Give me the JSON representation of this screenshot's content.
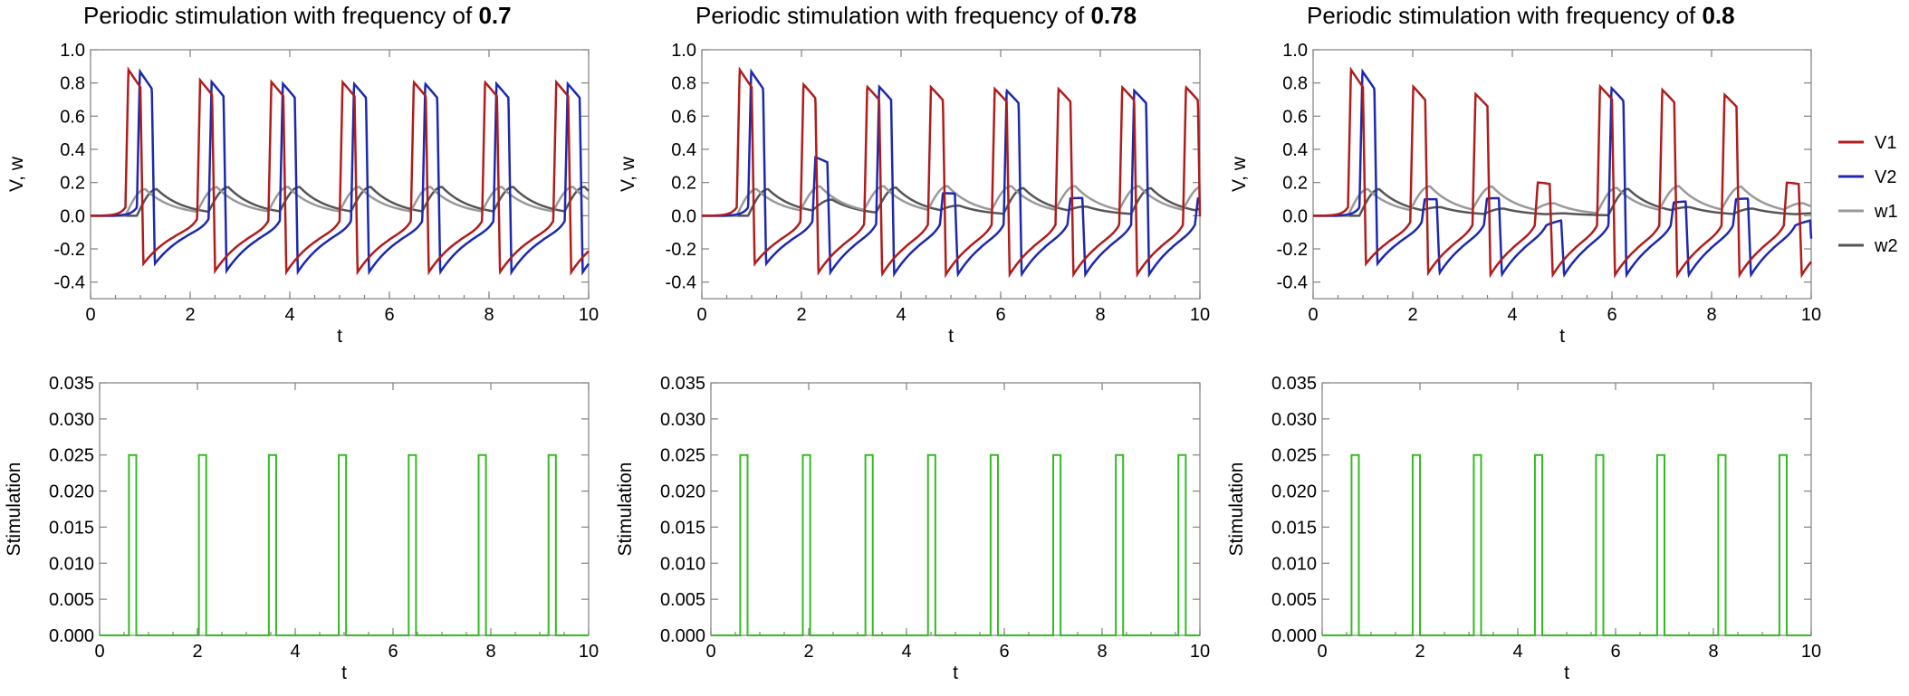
{
  "chart_data": [
    {
      "type": "line",
      "title_prefix": "Periodic stimulation with frequency of ",
      "title_value": "0.7",
      "xlabel": "t",
      "ylabel": "V, w",
      "xlim": [
        0,
        10
      ],
      "ylim": [
        -0.5,
        1.0
      ],
      "xticks": [
        "0",
        "2",
        "4",
        "6",
        "8",
        "10"
      ],
      "yticks": [
        "-0.4",
        "-0.2",
        "0.0",
        "0.2",
        "0.4",
        "0.6",
        "0.8",
        "1.0"
      ],
      "series": [
        {
          "name": "V1",
          "color": "#b01c1c",
          "spike_times": [
            0.7,
            2.14,
            3.57,
            5.0,
            6.43,
            7.86,
            9.29
          ],
          "peaks": [
            0.88,
            0.88,
            0.88,
            0.88,
            0.88,
            0.88,
            0.88
          ]
        },
        {
          "name": "V2",
          "color": "#1c28b0",
          "spike_times": [
            0.93,
            2.37,
            3.8,
            5.23,
            6.66,
            8.09,
            9.52
          ],
          "peaks": [
            0.87,
            0.87,
            0.87,
            0.87,
            0.87,
            0.87,
            0.87
          ]
        },
        {
          "name": "w1",
          "color": "#999999",
          "peak_value": 0.16
        },
        {
          "name": "w2",
          "color": "#555555",
          "peak_value": 0.16
        }
      ]
    },
    {
      "type": "line",
      "title_prefix": "Periodic stimulation with frequency of ",
      "title_value": "0.78",
      "xlabel": "t",
      "ylabel": "V, w",
      "xlim": [
        0,
        10
      ],
      "ylim": [
        -0.5,
        1.0
      ],
      "xticks": [
        "0",
        "2",
        "4",
        "6",
        "8",
        "10"
      ],
      "yticks": [
        "-0.4",
        "-0.2",
        "0.0",
        "0.2",
        "0.4",
        "0.6",
        "0.8",
        "1.0"
      ],
      "series": [
        {
          "name": "V1",
          "color": "#b01c1c",
          "spike_times": [
            0.7,
            1.98,
            3.26,
            4.54,
            5.82,
            7.1,
            8.38,
            9.66
          ],
          "peaks": [
            0.88,
            0.87,
            0.87,
            0.87,
            0.86,
            0.86,
            0.87,
            0.87
          ]
        },
        {
          "name": "V2",
          "color": "#1c28b0",
          "spike_times": [
            0.93,
            2.22,
            3.5,
            4.78,
            6.06,
            7.34,
            8.62,
            9.9
          ],
          "peaks": [
            0.87,
            0.43,
            0.87,
            0.23,
            0.85,
            0.2,
            0.85,
            0.2
          ]
        },
        {
          "name": "w1",
          "color": "#999999",
          "peak_value": 0.16
        },
        {
          "name": "w2",
          "color": "#555555",
          "peak_value": 0.16
        }
      ]
    },
    {
      "type": "line",
      "title_prefix": "Periodic stimulation with frequency of ",
      "title_value": "0.8",
      "xlabel": "t",
      "ylabel": "V, w",
      "xlim": [
        0,
        10
      ],
      "ylim": [
        -0.5,
        1.0
      ],
      "xticks": [
        "0",
        "2",
        "4",
        "6",
        "8",
        "10"
      ],
      "yticks": [
        "-0.4",
        "-0.2",
        "0.0",
        "0.2",
        "0.4",
        "0.6",
        "0.8",
        "1.0"
      ],
      "series": [
        {
          "name": "V1",
          "color": "#b01c1c",
          "spike_times": [
            0.7,
            1.95,
            3.2,
            4.45,
            5.7,
            6.95,
            8.2,
            9.45
          ],
          "peaks": [
            0.88,
            0.86,
            0.83,
            0.3,
            0.88,
            0.86,
            0.83,
            0.3
          ]
        },
        {
          "name": "V2",
          "color": "#1c28b0",
          "spike_times": [
            0.93,
            2.18,
            3.43,
            4.68,
            5.93,
            7.18,
            8.43,
            9.68
          ],
          "peaks": [
            0.87,
            0.18,
            0.2,
            0.05,
            0.87,
            0.18,
            0.2,
            0.05
          ]
        },
        {
          "name": "w1",
          "color": "#999999",
          "peak_value": 0.16
        },
        {
          "name": "w2",
          "color": "#555555",
          "peak_value": 0.16
        }
      ]
    },
    {
      "type": "line",
      "xlabel": "t",
      "ylabel": "Stimulation",
      "xlim": [
        0,
        10
      ],
      "ylim": [
        0,
        0.035
      ],
      "xticks": [
        "0",
        "2",
        "4",
        "6",
        "8",
        "10"
      ],
      "yticks": [
        "0.000",
        "0.005",
        "0.010",
        "0.015",
        "0.020",
        "0.025",
        "0.030",
        "0.035"
      ],
      "color": "#33bb22",
      "pulse_amplitude": 0.025,
      "pulse_width": 0.15,
      "pulse_starts": [
        0.6,
        2.03,
        3.46,
        4.89,
        6.32,
        7.75,
        9.18
      ]
    },
    {
      "type": "line",
      "xlabel": "t",
      "ylabel": "Stimulation",
      "xlim": [
        0,
        10
      ],
      "ylim": [
        0,
        0.035
      ],
      "xticks": [
        "0",
        "2",
        "4",
        "6",
        "8",
        "10"
      ],
      "yticks": [
        "0.000",
        "0.005",
        "0.010",
        "0.015",
        "0.020",
        "0.025",
        "0.030",
        "0.035"
      ],
      "color": "#33bb22",
      "pulse_amplitude": 0.025,
      "pulse_width": 0.15,
      "pulse_starts": [
        0.6,
        1.88,
        3.16,
        4.44,
        5.72,
        7.0,
        8.28,
        9.56
      ]
    },
    {
      "type": "line",
      "xlabel": "t",
      "ylabel": "Stimulation",
      "xlim": [
        0,
        10
      ],
      "ylim": [
        0,
        0.035
      ],
      "xticks": [
        "0",
        "2",
        "4",
        "6",
        "8",
        "10"
      ],
      "yticks": [
        "0.000",
        "0.005",
        "0.010",
        "0.015",
        "0.020",
        "0.025",
        "0.030",
        "0.035"
      ],
      "color": "#33bb22",
      "pulse_amplitude": 0.025,
      "pulse_width": 0.15,
      "pulse_starts": [
        0.6,
        1.85,
        3.1,
        4.35,
        5.6,
        6.85,
        8.1,
        9.35
      ]
    }
  ],
  "legend": {
    "placement": "right",
    "items": [
      {
        "label": "V1",
        "color": "#b01c1c"
      },
      {
        "label": "V2",
        "color": "#1c28b0"
      },
      {
        "label": "w1",
        "color": "#999999"
      },
      {
        "label": "w2",
        "color": "#555555"
      }
    ]
  }
}
